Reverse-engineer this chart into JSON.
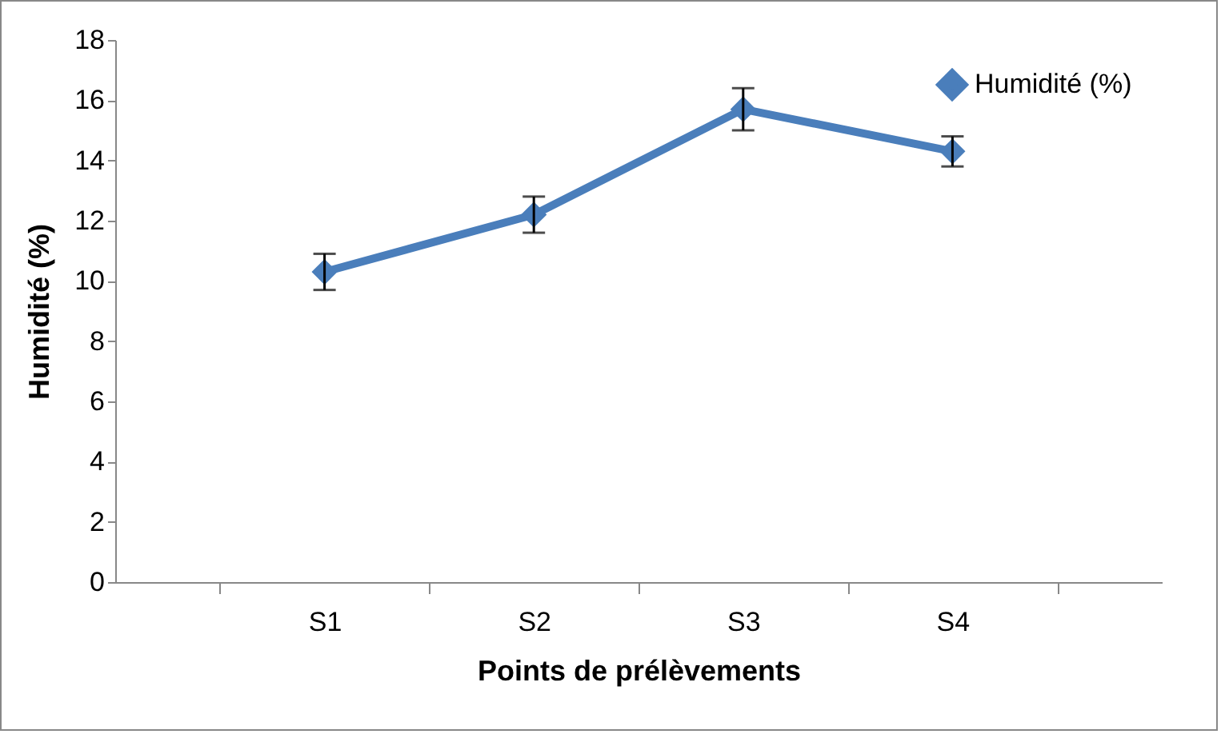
{
  "chart_data": {
    "type": "line",
    "xlabel": "Points de prélèvements",
    "ylabel": "Humidité (%)",
    "categories": [
      "S1",
      "S2",
      "S3",
      "S4"
    ],
    "series": [
      {
        "name": "Humidité (%)",
        "color": "#4a7ebb",
        "values": [
          10.3,
          12.2,
          15.7,
          14.3
        ],
        "errors": [
          0.6,
          0.6,
          0.7,
          0.5
        ]
      }
    ],
    "ylim": [
      0,
      18
    ],
    "yticks": [
      0,
      2,
      4,
      6,
      8,
      10,
      12,
      14,
      16,
      18
    ],
    "grid": false,
    "legend": "top right",
    "marker": "diamond",
    "line_style": "solid"
  }
}
